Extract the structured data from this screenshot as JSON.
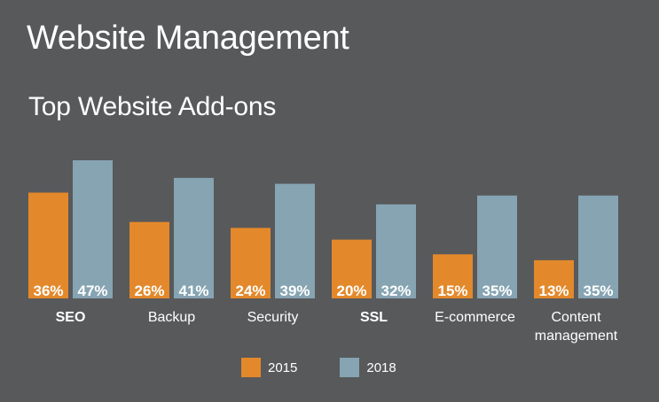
{
  "page": {
    "title": "Website Management"
  },
  "chart_data": {
    "type": "bar",
    "title": "Top Website Add-ons",
    "categories": [
      "SEO",
      "Backup",
      "Security",
      "SSL",
      "E-commerce",
      "Content\nmanagement"
    ],
    "category_bold": [
      true,
      false,
      false,
      true,
      false,
      false
    ],
    "series": [
      {
        "name": "2015",
        "values": [
          36,
          26,
          24,
          20,
          15,
          13
        ],
        "labels": [
          "36%",
          "26%",
          "24%",
          "20%",
          "15%",
          "13%"
        ],
        "color": "#e3892b"
      },
      {
        "name": "2018",
        "values": [
          47,
          41,
          39,
          32,
          35,
          35
        ],
        "labels": [
          "47%",
          "41%",
          "39%",
          "32%",
          "35%",
          "35%"
        ],
        "color": "#86a4b2"
      }
    ],
    "ylim": [
      0,
      50
    ],
    "grid": false,
    "legend_position": "bottom"
  }
}
